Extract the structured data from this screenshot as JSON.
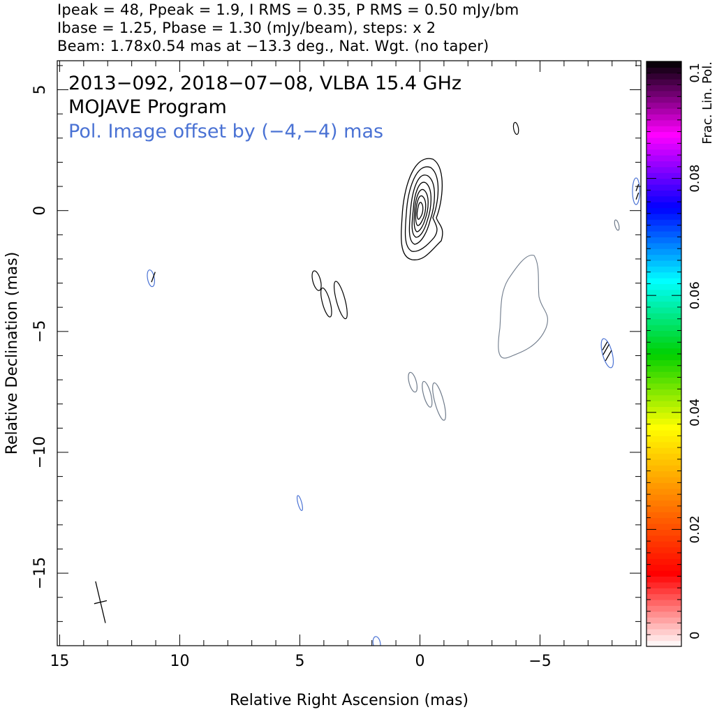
{
  "header": {
    "line1": "Ipeak = 48, Ppeak = 1.9, I RMS = 0.35, P RMS = 0.50 mJy/bm",
    "line2": "Ibase = 1.25, Pbase = 1.30 (mJy/beam), steps: x 2",
    "line3": "Beam: 1.78x0.54 mas at −13.3 deg., Nat. Wgt. (no taper)"
  },
  "colors": {
    "total_intensity_contour": "#000000",
    "polarization_contour": "#4a72d4",
    "low_level_contour": "#6e7a8a",
    "axis": "#000000"
  },
  "chart_data": {
    "type": "contour",
    "annotations": {
      "line1": "2013−092, 2018−07−08, VLBA 15.4 GHz",
      "line2": "MOJAVE Program",
      "line3": "Pol. Image offset by (−4,−4) mas"
    },
    "xlabel": "Relative Right Ascension (mas)",
    "ylabel": "Relative Declination (mas)",
    "xlim": [
      15.1,
      -9.2
    ],
    "ylim": [
      -18.0,
      6.2
    ],
    "x_ticks": [
      15,
      10,
      5,
      0,
      -5
    ],
    "x_tick_labels": [
      "15",
      "10",
      "5",
      "0",
      "−5"
    ],
    "y_ticks": [
      5,
      0,
      -5,
      -10,
      -15
    ],
    "y_tick_labels": [
      "5",
      "0",
      "−5",
      "−10",
      "−15"
    ],
    "core": {
      "x": 0.0,
      "y": 0.0,
      "levels": 7,
      "peak_mJy_per_beam": 48
    },
    "beam": {
      "major_mas": 1.78,
      "minor_mas": 0.54,
      "pa_deg": -13.3,
      "x": 13.3,
      "y": -16.2
    },
    "intensity_features": [
      {
        "x": -4.0,
        "y": 3.4,
        "rx": 0.1,
        "ry": 0.25,
        "angle": -10
      },
      {
        "x": 4.3,
        "y": -2.9,
        "rx": 0.16,
        "ry": 0.42,
        "angle": -15
      },
      {
        "x": 3.9,
        "y": -3.8,
        "rx": 0.16,
        "ry": 0.62,
        "angle": -15
      },
      {
        "x": 3.3,
        "y": -3.7,
        "rx": 0.18,
        "ry": 0.8,
        "angle": -15
      }
    ],
    "low_level_features": [
      {
        "x": 0.3,
        "y": -7.1,
        "rx": 0.15,
        "ry": 0.42,
        "angle": -15
      },
      {
        "x": -0.3,
        "y": -7.6,
        "rx": 0.15,
        "ry": 0.55,
        "angle": -15
      },
      {
        "x": -0.8,
        "y": -7.9,
        "rx": 0.18,
        "ry": 0.8,
        "angle": -15
      },
      {
        "x": -8.2,
        "y": -0.6,
        "rx": 0.08,
        "ry": 0.22,
        "angle": -15
      }
    ],
    "polarization_features": [
      {
        "x": 11.2,
        "y": -2.8,
        "rx": 0.14,
        "ry": 0.35,
        "angle": -10
      },
      {
        "x": 5.0,
        "y": -12.1,
        "rx": 0.08,
        "ry": 0.32,
        "angle": -15
      },
      {
        "x": -7.8,
        "y": -5.9,
        "rx": 0.2,
        "ry": 0.62,
        "angle": -15
      },
      {
        "x": -9.0,
        "y": 0.8,
        "rx": 0.15,
        "ry": 0.55,
        "angle": 0
      },
      {
        "x": 1.8,
        "y": -17.9,
        "rx": 0.15,
        "ry": 0.28,
        "angle": -10
      }
    ],
    "evpa_ticks": [
      {
        "x": 11.1,
        "y": -2.75,
        "angle": 70,
        "len": 0.45
      },
      {
        "x": -7.75,
        "y": -5.75,
        "angle": 60,
        "len": 0.5
      },
      {
        "x": -7.85,
        "y": -6.0,
        "angle": 60,
        "len": 0.5
      },
      {
        "x": -7.7,
        "y": -5.6,
        "angle": 60,
        "len": 0.4
      },
      {
        "x": -9.05,
        "y": 0.95,
        "angle": 70,
        "len": 0.3
      },
      {
        "x": -9.05,
        "y": 0.6,
        "angle": 70,
        "len": 0.3
      }
    ],
    "colorbar": {
      "label": "Frac. Lin. Pol.",
      "ticks": [
        0,
        0.02,
        0.04,
        0.06,
        0.08,
        0.1
      ],
      "tick_labels": [
        "0",
        "0.02",
        "0.04",
        "0.06",
        "0.08",
        "0.1"
      ],
      "range": [
        0,
        0.1
      ],
      "palette": [
        "#ffffff",
        "#ff0000",
        "#ff8000",
        "#ffff00",
        "#00d000",
        "#00ffff",
        "#0000ff",
        "#ff00ff",
        "#000000"
      ]
    }
  }
}
